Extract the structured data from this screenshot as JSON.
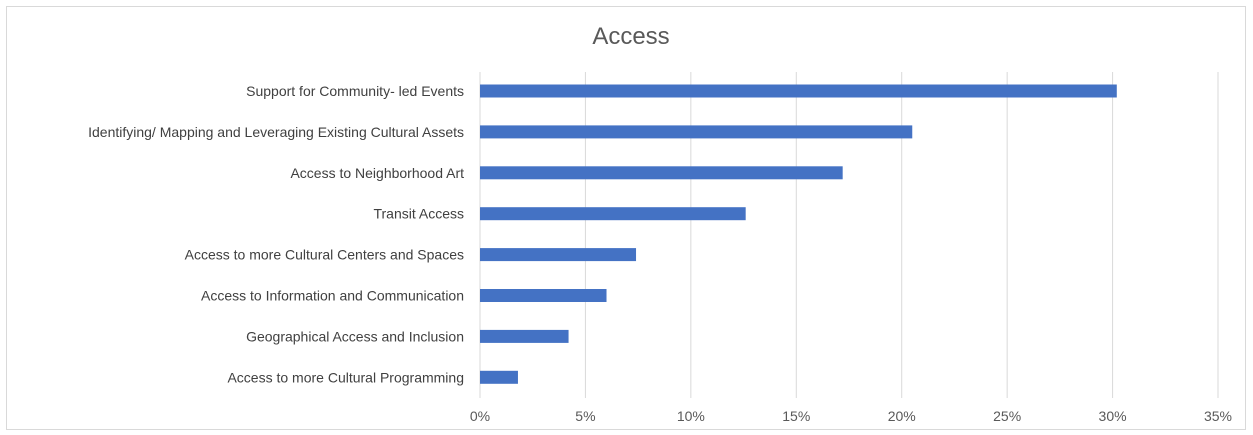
{
  "chart_data": {
    "type": "bar",
    "orientation": "horizontal",
    "title": "Access",
    "categories": [
      "Support for Community- led Events",
      "Identifying/ Mapping and Leveraging Existing Cultural Assets",
      "Access to Neighborhood Art",
      "Transit Access",
      "Access to more Cultural Centers and Spaces",
      "Access to Information and Communication",
      "Geographical Access and Inclusion",
      "Access to more Cultural Programming"
    ],
    "values": [
      0.302,
      0.205,
      0.172,
      0.126,
      0.074,
      0.06,
      0.042,
      0.018
    ],
    "xlim": [
      0,
      0.35
    ],
    "ticks": [
      0,
      0.05,
      0.1,
      0.15,
      0.2,
      0.25,
      0.3,
      0.35
    ],
    "tick_labels": [
      "0%",
      "5%",
      "10%",
      "15%",
      "20%",
      "25%",
      "30%",
      "35%"
    ],
    "xlabel": "",
    "ylabel": "",
    "grid": true,
    "legend": "none",
    "bar_color": "#4472C4",
    "grid_color": "#d9d9d9"
  }
}
